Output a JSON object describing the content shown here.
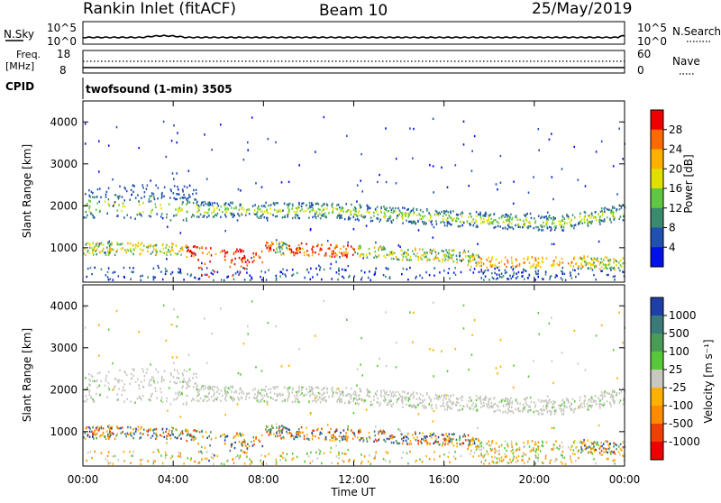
{
  "header": {
    "station": "Rankin Inlet (fitACF)",
    "beam": "Beam 10",
    "date": "25/May/2019"
  },
  "top_panels": {
    "nsky_label": "N.Sky",
    "nsky_ticks": [
      "10^5",
      "10^0"
    ],
    "nsearch_label": "N.Search",
    "nsearch_ticks": [
      "10^5",
      "10^0"
    ],
    "freq_label_1": "Freq.",
    "freq_label_2": "[MHz]",
    "freq_ticks": [
      "18",
      "8"
    ],
    "nave_label": "Nave",
    "nave_ticks": [
      "60",
      "0"
    ],
    "cpid_label": "CPID",
    "cpid_text": "twofsound (1-min) 3505"
  },
  "chart_data": [
    {
      "type": "heatmap",
      "name": "power-panel",
      "ylabel": "Slant Range [km]",
      "yticks": [
        "4000",
        "3000",
        "2000",
        "1000"
      ],
      "ylim": [
        180,
        4500
      ],
      "xlim": [
        0,
        24
      ],
      "xticks": [
        "00:00",
        "04:00",
        "08:00",
        "12:00",
        "16:00",
        "20:00",
        "00:00"
      ],
      "colorbar": {
        "label": "Power [dB]",
        "ticks": [
          "28",
          "24",
          "20",
          "16",
          "12",
          "8",
          "4"
        ],
        "colors": [
          "#ee0000",
          "#ff6a00",
          "#ffb000",
          "#e0e000",
          "#60c840",
          "#3a8a70",
          "#2050b0",
          "#0010e8"
        ]
      }
    },
    {
      "type": "heatmap",
      "name": "velocity-panel",
      "ylabel": "Slant Range [km]",
      "yticks": [
        "4000",
        "3000",
        "2000",
        "1000"
      ],
      "ylim": [
        180,
        4500
      ],
      "xlim": [
        0,
        24
      ],
      "xticks": [
        "00:00",
        "04:00",
        "08:00",
        "12:00",
        "16:00",
        "20:00",
        "00:00"
      ],
      "xlabel": "Time UT",
      "colorbar": {
        "label": "Velocity [m s⁻¹]",
        "ticks": [
          "1000",
          "500",
          "100",
          "25",
          "-25",
          "-100",
          "-500",
          "-1000"
        ],
        "colors": [
          "#1f3fa8",
          "#3a7a7a",
          "#4a9a58",
          "#58c838",
          "#c8c8c0",
          "#ffb000",
          "#ff8c00",
          "#ee4000",
          "#ee0000"
        ]
      }
    }
  ]
}
